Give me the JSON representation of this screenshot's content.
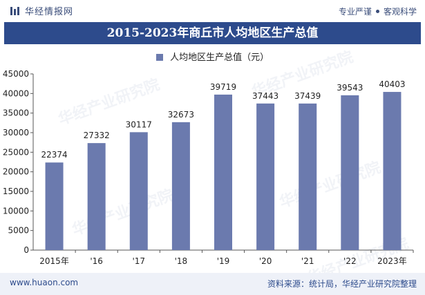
{
  "header": {
    "brand_name": "华经情报网",
    "slogan_left": "专业严谨",
    "slogan_right": "客观科学"
  },
  "footer": {
    "url": "www.huaon.com",
    "source": "资料来源：统计局，华经产业研究院整理"
  },
  "colors": {
    "title_bg": "#2d4b8c",
    "bar": "#6b7aae",
    "footer_bg": "#eef1f8"
  },
  "chart_data": {
    "type": "bar",
    "title": "2015-2023年商丘市人均地区生产总值",
    "categories": [
      "2015年",
      "'16",
      "'17",
      "'18",
      "'19",
      "'20",
      "'21",
      "'22",
      "2023年"
    ],
    "series": [
      {
        "name": "人均地区生产总值（元）",
        "values": [
          22374,
          27332,
          30117,
          32673,
          39719,
          37443,
          37439,
          39543,
          40403
        ]
      }
    ],
    "yticks": [
      0,
      5000,
      10000,
      15000,
      20000,
      25000,
      30000,
      35000,
      40000,
      45000
    ],
    "ylim": [
      0,
      45000
    ],
    "xlabel": "",
    "ylabel": "",
    "legend_position": "top"
  },
  "watermark": "华经产业研究院"
}
